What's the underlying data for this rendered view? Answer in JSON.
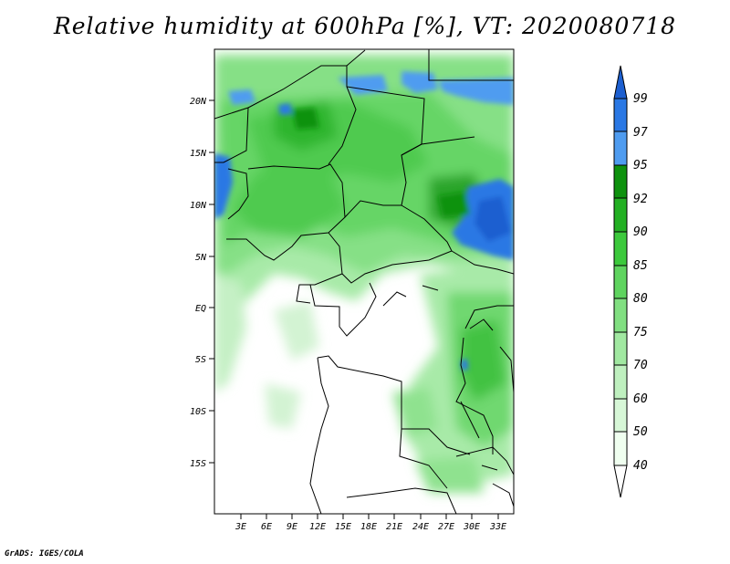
{
  "title": "Relative humidity at 600hPa [%], VT: 2020080718",
  "credit": "GrADS: IGES/COLA",
  "map": {
    "lat_labels": [
      "20N",
      "15N",
      "10N",
      "5N",
      "EQ",
      "5S",
      "10S",
      "15S"
    ],
    "lon_labels": [
      "3E",
      "6E",
      "9E",
      "12E",
      "15E",
      "18E",
      "21E",
      "24E",
      "27E",
      "30E",
      "33E"
    ]
  },
  "colorbar": {
    "levels": [
      "40",
      "50",
      "60",
      "70",
      "75",
      "80",
      "85",
      "90",
      "92",
      "95",
      "97",
      "99"
    ],
    "colors": [
      "#f0fff0",
      "#d7f7d7",
      "#bff0bf",
      "#a1e8a1",
      "#81df81",
      "#5fd45f",
      "#3cc93c",
      "#23b023",
      "#0e920e",
      "#4f9cf0",
      "#2a78e4",
      "#1c5fd0"
    ]
  }
}
